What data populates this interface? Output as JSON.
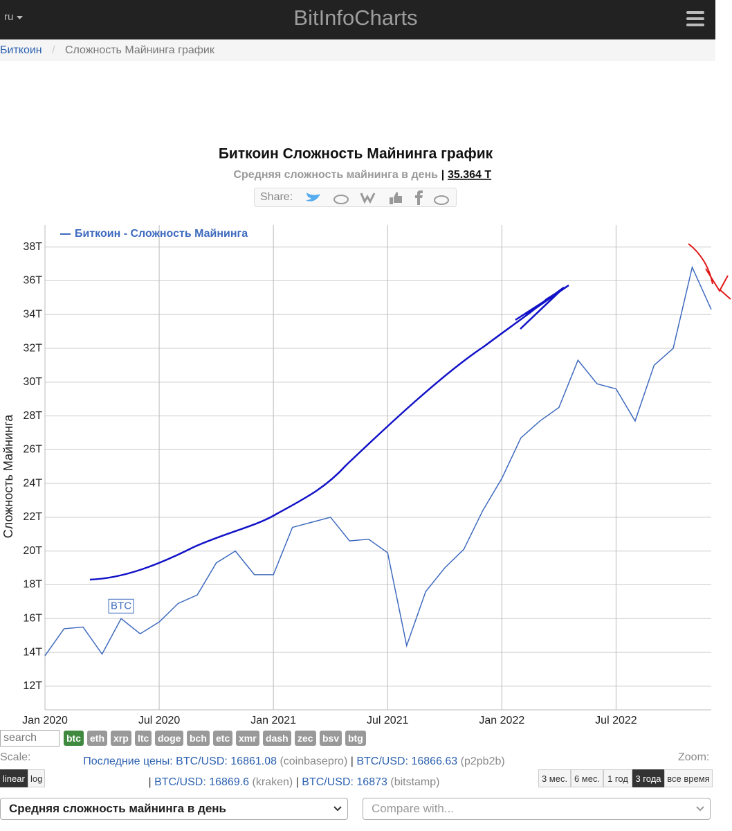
{
  "header": {
    "language": "ru",
    "brand": "BitInfoCharts"
  },
  "breadcrumb": [
    "Биткоин",
    "Сложность Майнинга график"
  ],
  "chart_data": {
    "type": "line",
    "title": "Биткоин Сложность Майнинга график",
    "subtitle": "Средняя сложность майнинга в день",
    "subtitle_separator": "|",
    "current_value": "35.364 T",
    "share_label": "Share:",
    "y_label": "Сложность Майнинга",
    "x": [
      "2020-01",
      "2020-02",
      "2020-03",
      "2020-04",
      "2020-05",
      "2020-06",
      "2020-07",
      "2020-08",
      "2020-09",
      "2020-10",
      "2020-11",
      "2020-12",
      "2021-01",
      "2021-02",
      "2021-03",
      "2021-04",
      "2021-05",
      "2021-06",
      "2021-07",
      "2021-08",
      "2021-09",
      "2021-10",
      "2021-11",
      "2021-12",
      "2022-01",
      "2022-02",
      "2022-03",
      "2022-04",
      "2022-05",
      "2022-06",
      "2022-07",
      "2022-08",
      "2022-09",
      "2022-10",
      "2022-11",
      "2022-12"
    ],
    "series": [
      {
        "name": "Биткоин - Сложность Майнинга",
        "color": "#3e6abf",
        "values": [
          13.8,
          15.4,
          15.5,
          13.9,
          16.0,
          15.1,
          15.8,
          16.9,
          17.4,
          19.3,
          20.0,
          18.6,
          18.6,
          21.4,
          21.7,
          22.0,
          20.6,
          20.7,
          19.9,
          14.4,
          17.6,
          19.0,
          20.1,
          22.4,
          24.3,
          26.7,
          27.7,
          28.5,
          31.3,
          29.9,
          29.6,
          27.7,
          31.0,
          32.0,
          36.8,
          34.3
        ]
      }
    ],
    "xlim": [
      "2020-01",
      "2022-12"
    ],
    "xticks": [
      {
        "value": "2020-01",
        "label": "Jan 2020"
      },
      {
        "value": "2020-07",
        "label": "Jul 2020"
      },
      {
        "value": "2021-01",
        "label": "Jan 2021"
      },
      {
        "value": "2021-07",
        "label": "Jul 2021"
      },
      {
        "value": "2022-01",
        "label": "Jan 2022"
      },
      {
        "value": "2022-07",
        "label": "Jul 2022"
      }
    ],
    "ylim": [
      10.6,
      39.3
    ],
    "yticks": [
      {
        "value": 12,
        "label": "12T"
      },
      {
        "value": 14,
        "label": "14T"
      },
      {
        "value": 16,
        "label": "16T"
      },
      {
        "value": 18,
        "label": "18T"
      },
      {
        "value": 20,
        "label": "20T"
      },
      {
        "value": 22,
        "label": "22T"
      },
      {
        "value": 24,
        "label": "24T"
      },
      {
        "value": 26,
        "label": "26T"
      },
      {
        "value": 28,
        "label": "28T"
      },
      {
        "value": 30,
        "label": "30T"
      },
      {
        "value": 32,
        "label": "32T"
      },
      {
        "value": 34,
        "label": "34T"
      },
      {
        "value": 36,
        "label": "36T"
      },
      {
        "value": 38,
        "label": "38T"
      }
    ],
    "grid": true,
    "legend": "top-left",
    "annotations": [
      {
        "x": "2020-05",
        "text": "BTC"
      }
    ]
  },
  "controls": {
    "search_placeholder": "search",
    "coins": [
      "btc",
      "eth",
      "xrp",
      "ltc",
      "doge",
      "bch",
      "etc",
      "xmr",
      "dash",
      "zec",
      "bsv",
      "btg"
    ],
    "active_coin": 0,
    "scale_label": "Scale:",
    "scales": [
      "linear",
      "log"
    ],
    "active_scale": 0,
    "zoom_label": "Zoom:",
    "zoom": [
      "3 мес.",
      "6 мес.",
      "1 год",
      "3 года",
      "все время"
    ],
    "active_zoom": 3,
    "prices": {
      "label": "Последние цены:",
      "separator": "|",
      "items": [
        {
          "pair": "BTC/USD:",
          "price": "16861.08",
          "exchange": "(coinbasepro)"
        },
        {
          "pair": "BTC/USD:",
          "price": "16866.63",
          "exchange": "(p2pb2b)"
        },
        {
          "pair": "BTC/USD:",
          "price": "16869.6",
          "exchange": "(kraken)"
        },
        {
          "pair": "BTC/USD:",
          "price": "16873",
          "exchange": "(bitstamp)"
        }
      ]
    },
    "metric_select": "Средняя сложность майнинга в день",
    "compare_placeholder": "Compare with..."
  }
}
